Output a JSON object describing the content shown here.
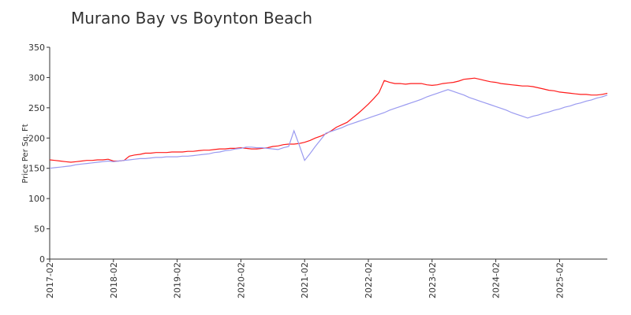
{
  "chart_data": {
    "type": "line",
    "title": "Murano Bay vs Boynton Beach",
    "y_label": "Price Per Sq. Ft",
    "x": [
      "2017-02",
      "2017-03",
      "2017-04",
      "2017-05",
      "2017-06",
      "2017-07",
      "2017-08",
      "2017-09",
      "2017-10",
      "2017-11",
      "2017-12",
      "2018-01",
      "2018-02",
      "2018-03",
      "2018-04",
      "2018-05",
      "2018-06",
      "2018-07",
      "2018-08",
      "2018-09",
      "2018-10",
      "2018-11",
      "2018-12",
      "2019-01",
      "2019-02",
      "2019-03",
      "2019-04",
      "2019-05",
      "2019-06",
      "2019-07",
      "2019-08",
      "2019-09",
      "2019-10",
      "2019-11",
      "2019-12",
      "2020-01",
      "2020-02",
      "2020-03",
      "2020-04",
      "2020-05",
      "2020-06",
      "2020-07",
      "2020-08",
      "2020-09",
      "2020-10",
      "2020-11",
      "2020-12",
      "2021-01",
      "2021-02",
      "2021-03",
      "2021-04",
      "2021-05",
      "2021-06",
      "2021-07",
      "2021-08",
      "2021-09",
      "2021-10",
      "2021-11",
      "2021-12",
      "2022-01",
      "2022-02",
      "2022-03",
      "2022-04",
      "2022-05",
      "2022-06",
      "2022-07",
      "2022-08",
      "2022-09",
      "2022-10",
      "2022-11",
      "2022-12",
      "2023-01",
      "2023-02",
      "2023-03",
      "2023-04",
      "2023-05",
      "2023-06",
      "2023-07",
      "2023-08",
      "2023-09",
      "2023-10",
      "2023-11",
      "2023-12",
      "2024-01",
      "2024-02",
      "2024-03",
      "2024-04",
      "2024-05",
      "2024-06",
      "2024-07",
      "2024-08",
      "2024-09",
      "2024-10",
      "2024-11",
      "2024-12",
      "2025-01",
      "2025-02",
      "2025-03",
      "2025-04",
      "2025-05",
      "2025-06",
      "2025-07",
      "2025-08",
      "2025-09",
      "2025-10",
      "2025-11"
    ],
    "xticks": [
      "2017-02",
      "2018-02",
      "2019-02",
      "2020-02",
      "2021-02",
      "2022-02",
      "2023-02",
      "2024-02",
      "2025-02"
    ],
    "series": [
      {
        "color": "#ff1a1a",
        "values": [
          164,
          163,
          162,
          161,
          160,
          161,
          162,
          163,
          163,
          164,
          164,
          165,
          162,
          162,
          163,
          170,
          172,
          173,
          175,
          175,
          176,
          176,
          176,
          177,
          177,
          177,
          178,
          178,
          179,
          180,
          180,
          181,
          182,
          182,
          183,
          183,
          184,
          183,
          182,
          182,
          183,
          184,
          186,
          187,
          189,
          190,
          190,
          191,
          193,
          196,
          200,
          203,
          207,
          212,
          218,
          222,
          226,
          233,
          240,
          248,
          256,
          265,
          275,
          295,
          292,
          290,
          290,
          289,
          290,
          290,
          290,
          288,
          287,
          288,
          290,
          291,
          292,
          294,
          297,
          298,
          299,
          297,
          295,
          293,
          292,
          290,
          289,
          288,
          287,
          286,
          286,
          285,
          283,
          281,
          279,
          278,
          276,
          275,
          274,
          273,
          272,
          272,
          271,
          271,
          272,
          274
        ]
      },
      {
        "color": "#9a9af0",
        "values": [
          150,
          151,
          152,
          153,
          154,
          156,
          157,
          158,
          159,
          160,
          161,
          162,
          161,
          162,
          163,
          164,
          165,
          166,
          166,
          167,
          168,
          168,
          169,
          169,
          169,
          170,
          170,
          171,
          172,
          173,
          174,
          176,
          177,
          179,
          180,
          182,
          183,
          185,
          185,
          184,
          184,
          183,
          182,
          181,
          184,
          186,
          212,
          188,
          163,
          174,
          186,
          197,
          208,
          211,
          214,
          217,
          221,
          224,
          227,
          230,
          233,
          236,
          239,
          242,
          246,
          249,
          252,
          255,
          258,
          261,
          264,
          268,
          271,
          274,
          277,
          280,
          277,
          274,
          271,
          267,
          264,
          261,
          258,
          255,
          252,
          249,
          246,
          242,
          239,
          236,
          233,
          236,
          238,
          241,
          243,
          246,
          248,
          251,
          253,
          256,
          258,
          261,
          263,
          266,
          268,
          271
        ]
      }
    ],
    "ylim": [
      0,
      350
    ],
    "yticks": [
      0,
      50,
      100,
      150,
      200,
      250,
      300,
      350
    ]
  }
}
